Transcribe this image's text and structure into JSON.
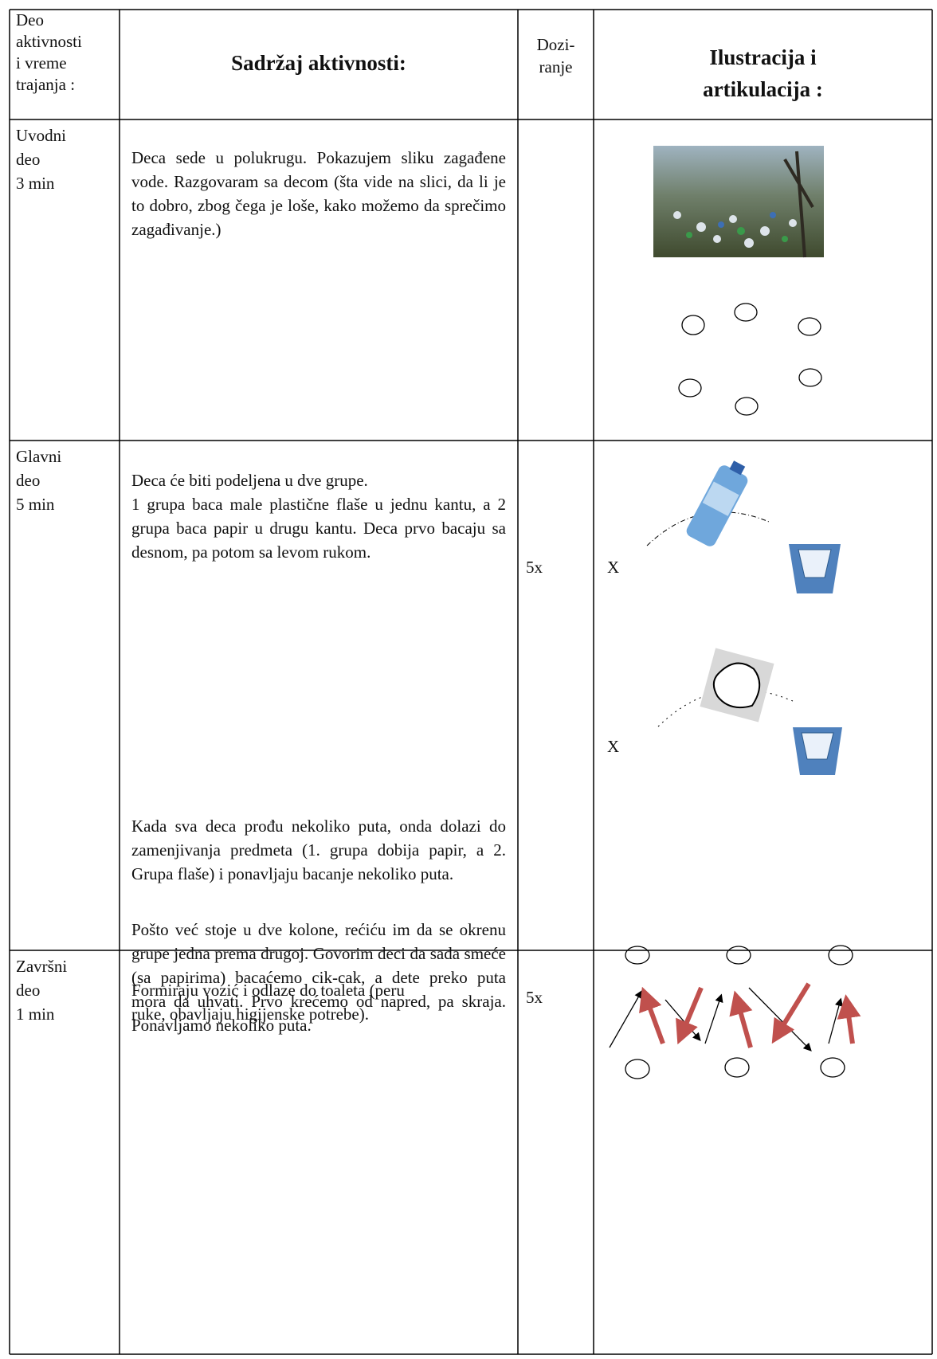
{
  "table": {
    "header": [
      [
        "Deo",
        "aktivnosti",
        "i vreme",
        "trajanja :"
      ],
      "Sadržaj aktivnosti:",
      [
        "Dozi-",
        "ranje"
      ],
      [
        "Ilustracija i",
        "artikulacija :"
      ]
    ],
    "rows": [
      {
        "part": [
          "Uvodni",
          "deo",
          "3 min"
        ],
        "content": [
          "Deca sede u polukrugu. Pokazujem sliku zagađene vode. Razgovaram sa decom (šta vide na slici, da li je to dobro, zbog čega je loše, kako možemo da sprečimo zagađivanje.)"
        ]
      },
      {
        "part": [
          "Glavni",
          "deo",
          "5 min"
        ],
        "content": [
          "Deca će biti podeljena u dve grupe.",
          "1 grupa baca male plastične flaše u jednu kantu, a 2 grupa baca papir u drugu kantu. Deca prvo bacaju sa desnom, pa potom sa levom rukom.",
          "Kada sva deca prođu nekoliko puta, onda dolazi do zamenjivanja predmeta (1. grupa dobija papir, a 2. Grupa flaše) i ponavljaju bacanje nekoliko puta.",
          "Pošto već stoje u dve kolone, rećiću im da se okrenu grupe jedna prema drugoj. Govorim deci da sada smeće (sa papirima) bacaćemo cik-cak, a dete preko puta mora da uhvati. Prvo krećemo od napred, pa skraja. Ponavljamo nekoliko puta."
        ],
        "dosage": [
          "5x",
          "5x"
        ],
        "illustration_labels": [
          "X",
          "X"
        ]
      },
      {
        "part": [
          "Završni",
          "deo",
          "1 min"
        ],
        "content": [
          "Formiraju vozić i odlaze do toaleta (peru ruke, obavljaju higijenske potrebe)."
        ]
      }
    ]
  }
}
